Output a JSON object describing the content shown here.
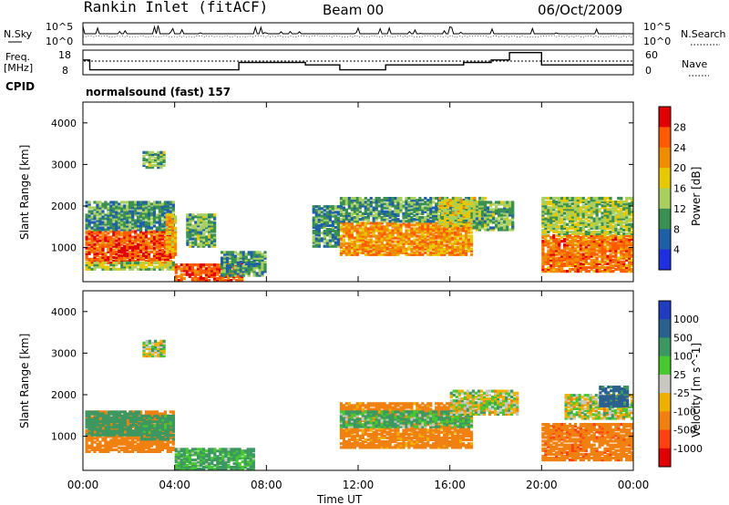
{
  "header": {
    "station": "Rankin Inlet (fitACF)",
    "beam": "Beam 00",
    "date": "06/Oct/2009"
  },
  "noise_panel": {
    "left_label": "N.Sky",
    "right_label": "N.Search",
    "left_ticks": [
      "10^5",
      "10^0"
    ],
    "right_ticks": [
      "10^5",
      "10^0"
    ]
  },
  "freq_panel": {
    "left_label_1": "Freq.",
    "left_label_2": "[MHz]",
    "right_label": "Nave",
    "left_ticks": [
      "18",
      "8"
    ],
    "right_ticks": [
      "60",
      "0"
    ]
  },
  "cpid_panel": {
    "label": "CPID",
    "program": "normalsound (fast) 157"
  },
  "power_panel": {
    "ylabel": "Slant Range [km]",
    "y_ticks": [
      "4000",
      "3000",
      "2000",
      "1000"
    ],
    "colorbar_label": "Power [dB]",
    "colorbar_ticks": [
      "28",
      "24",
      "20",
      "16",
      "12",
      "8",
      "4"
    ],
    "colorbar_colors": [
      "#e00000",
      "#ff5a00",
      "#f08c00",
      "#e8c800",
      "#a8d060",
      "#3a9050",
      "#1f5fa8",
      "#1e2fe0"
    ]
  },
  "velocity_panel": {
    "ylabel": "Slant Range [km]",
    "y_ticks": [
      "4000",
      "3000",
      "2000",
      "1000"
    ],
    "colorbar_label": "Velocity [m s^-1]",
    "colorbar_ticks": [
      "1000",
      "500",
      "100",
      "25",
      "-25",
      "-100",
      "-500",
      "-1000"
    ],
    "colorbar_colors": [
      "#203cc0",
      "#2a6090",
      "#3c9860",
      "#48c830",
      "#c8c8c0",
      "#f0b000",
      "#f08010",
      "#ff4010",
      "#e00000"
    ]
  },
  "x_axis": {
    "ticks": [
      "00:00",
      "04:00",
      "08:00",
      "12:00",
      "16:00",
      "20:00",
      "00:00"
    ],
    "label": "Time UT"
  },
  "chart_data": {
    "type": "heatmap",
    "x_range_hours": [
      0,
      24
    ],
    "y_range_km": [
      180,
      4500
    ],
    "power_colorbar_db": [
      4,
      8,
      12,
      16,
      20,
      24,
      28
    ],
    "velocity_colorbar_ms": [
      -1000,
      -500,
      -100,
      -25,
      25,
      100,
      500,
      1000
    ],
    "freq_mhz_steps": [
      {
        "t0": 0.0,
        "t1": 0.3,
        "f": 14
      },
      {
        "t0": 0.3,
        "t1": 6.8,
        "f": 10
      },
      {
        "t0": 6.8,
        "t1": 9.7,
        "f": 13
      },
      {
        "t0": 9.7,
        "t1": 11.2,
        "f": 12
      },
      {
        "t0": 11.2,
        "t1": 13.2,
        "f": 10
      },
      {
        "t0": 13.2,
        "t1": 16.6,
        "f": 12
      },
      {
        "t0": 16.6,
        "t1": 17.8,
        "f": 13
      },
      {
        "t0": 17.8,
        "t1": 18.6,
        "f": 14
      },
      {
        "t0": 18.6,
        "t1": 20.0,
        "f": 17
      },
      {
        "t0": 20.0,
        "t1": 24.0,
        "f": 12
      }
    ],
    "power_patches": [
      {
        "t0": 0.1,
        "t1": 4.0,
        "r0": 600,
        "r1": 1400,
        "db": 26
      },
      {
        "t0": 0.1,
        "t1": 4.0,
        "r0": 450,
        "r1": 650,
        "db": 14
      },
      {
        "t0": 0.1,
        "t1": 4.0,
        "r0": 1400,
        "r1": 2100,
        "db": 10
      },
      {
        "t0": 3.6,
        "t1": 4.1,
        "r0": 800,
        "r1": 1800,
        "db": 20
      },
      {
        "t0": 2.6,
        "t1": 3.6,
        "r0": 2900,
        "r1": 3300,
        "db": 12
      },
      {
        "t0": 4.0,
        "t1": 7.0,
        "r0": 180,
        "r1": 600,
        "db": 26
      },
      {
        "t0": 6.0,
        "t1": 8.0,
        "r0": 300,
        "r1": 900,
        "db": 10
      },
      {
        "t0": 4.5,
        "t1": 5.8,
        "r0": 1000,
        "r1": 1800,
        "db": 12
      },
      {
        "t0": 10.0,
        "t1": 11.2,
        "r0": 1000,
        "r1": 2000,
        "db": 9
      },
      {
        "t0": 11.2,
        "t1": 17.0,
        "r0": 800,
        "r1": 1600,
        "db": 22
      },
      {
        "t0": 11.2,
        "t1": 17.0,
        "r0": 1600,
        "r1": 2200,
        "db": 10
      },
      {
        "t0": 15.5,
        "t1": 17.6,
        "r0": 1500,
        "r1": 2200,
        "db": 16
      },
      {
        "t0": 17.0,
        "t1": 18.8,
        "r0": 1400,
        "r1": 2100,
        "db": 12
      },
      {
        "t0": 20.0,
        "t1": 24.0,
        "r0": 400,
        "r1": 1300,
        "db": 24
      },
      {
        "t0": 20.0,
        "t1": 24.0,
        "r0": 1300,
        "r1": 2200,
        "db": 14
      }
    ],
    "velocity_patches": [
      {
        "t0": 0.1,
        "t1": 4.0,
        "r0": 600,
        "r1": 1600,
        "v": -300
      },
      {
        "t0": 0.1,
        "t1": 2.5,
        "r0": 1000,
        "r1": 1600,
        "v": 300
      },
      {
        "t0": 2.5,
        "t1": 4.0,
        "r0": 900,
        "r1": 1500,
        "v": 200
      },
      {
        "t0": 2.6,
        "t1": 3.6,
        "r0": 2900,
        "r1": 3300,
        "v": 20
      },
      {
        "t0": 4.0,
        "t1": 7.5,
        "r0": 180,
        "r1": 700,
        "v": 150
      },
      {
        "t0": 11.2,
        "t1": 17.0,
        "r0": 700,
        "r1": 1800,
        "v": -200
      },
      {
        "t0": 11.2,
        "t1": 17.0,
        "r0": 1200,
        "r1": 1600,
        "v": 120
      },
      {
        "t0": 16.0,
        "t1": 19.0,
        "r0": 1500,
        "r1": 2100,
        "v": 0
      },
      {
        "t0": 20.0,
        "t1": 24.0,
        "r0": 400,
        "r1": 1300,
        "v": -400
      },
      {
        "t0": 21.0,
        "t1": 24.0,
        "r0": 1400,
        "r1": 2000,
        "v": 0
      },
      {
        "t0": 22.5,
        "t1": 23.8,
        "r0": 1700,
        "r1": 2200,
        "v": 600
      }
    ]
  }
}
